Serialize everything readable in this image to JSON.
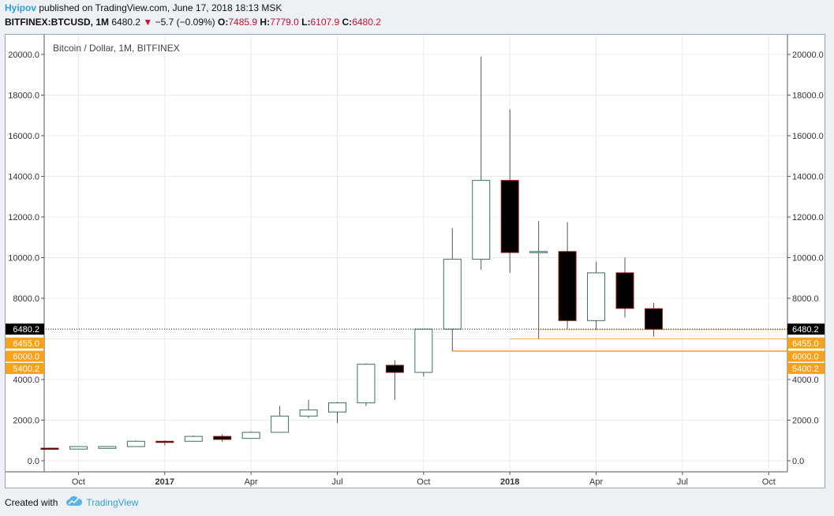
{
  "header": {
    "author": "Hyipov",
    "published_text": " published on TradingView.com, June 17, 2018 18:13 MSK",
    "symbol": "BITFINEX:BTCUSD, 1M",
    "last": "6480.2",
    "down_arrow": "▼",
    "change": "−5.7 (−0.09%)",
    "o_label": "O:",
    "o_value": "7485.9",
    "h_label": "H:",
    "h_value": "7779.0",
    "l_label": "L:",
    "l_value": "6107.9",
    "c_label": "C:",
    "c_value": "6480.2"
  },
  "footer": {
    "created_with": "Created with",
    "brand": "TradingView",
    "logo_icon": "tradingview-cloud-icon"
  },
  "colors": {
    "up_border": "#3d6f5c",
    "down_fill": "#000000",
    "down_border": "#8b1a1a",
    "grid": "#e9ecef",
    "price_line": "#111111",
    "level_line": "#f7a21b",
    "badge_current": "#000000",
    "badge_level": "#f7a21b"
  },
  "chart_data": {
    "type": "candlestick",
    "title": "Bitcoin / Dollar, 1M, BITFINEX",
    "ylim": [
      -500,
      21000
    ],
    "y_ticks": [
      0,
      2000,
      4000,
      8000,
      10000,
      12000,
      14000,
      16000,
      18000,
      20000
    ],
    "y_tick_labels": [
      "0.0",
      "2000.0",
      "4000.0",
      "8000.0",
      "10000.0",
      "12000.0",
      "14000.0",
      "16000.0",
      "18000.0",
      "20000.0"
    ],
    "x_ticks": [
      {
        "label": "Oct",
        "index": 1,
        "bold": false
      },
      {
        "label": "2017",
        "index": 4,
        "bold": true
      },
      {
        "label": "Apr",
        "index": 7,
        "bold": false
      },
      {
        "label": "Jul",
        "index": 10,
        "bold": false
      },
      {
        "label": "Oct",
        "index": 13,
        "bold": false
      },
      {
        "label": "2018",
        "index": 16,
        "bold": true
      },
      {
        "label": "Apr",
        "index": 19,
        "bold": false
      },
      {
        "label": "Jul",
        "index": 22,
        "bold": false
      },
      {
        "label": "Oct",
        "index": 25,
        "bold": false
      }
    ],
    "candles": [
      {
        "date": "2016-08",
        "o": 620,
        "h": 640,
        "l": 560,
        "c": 575
      },
      {
        "date": "2016-09",
        "o": 575,
        "h": 720,
        "l": 560,
        "c": 700
      },
      {
        "date": "2016-10",
        "o": 610,
        "h": 720,
        "l": 600,
        "c": 700
      },
      {
        "date": "2016-11",
        "o": 700,
        "h": 1000,
        "l": 690,
        "c": 960
      },
      {
        "date": "2016-12",
        "o": 960,
        "h": 1000,
        "l": 760,
        "c": 950
      },
      {
        "date": "2017-01",
        "o": 960,
        "h": 1250,
        "l": 940,
        "c": 1200
      },
      {
        "date": "2017-02",
        "o": 1200,
        "h": 1300,
        "l": 930,
        "c": 1050
      },
      {
        "date": "2017-03",
        "o": 1100,
        "h": 1450,
        "l": 1080,
        "c": 1400
      },
      {
        "date": "2017-04",
        "o": 1400,
        "h": 2700,
        "l": 1400,
        "c": 2200
      },
      {
        "date": "2017-05",
        "o": 2200,
        "h": 3000,
        "l": 2100,
        "c": 2500
      },
      {
        "date": "2017-06",
        "o": 2400,
        "h": 2900,
        "l": 1850,
        "c": 2850
      },
      {
        "date": "2017-07",
        "o": 2850,
        "h": 4800,
        "l": 2700,
        "c": 4750
      },
      {
        "date": "2017-08",
        "o": 4700,
        "h": 4950,
        "l": 3000,
        "c": 4350
      },
      {
        "date": "2017-09",
        "o": 4350,
        "h": 6450,
        "l": 4150,
        "c": 6480
      },
      {
        "date": "2017-10",
        "o": 6480,
        "h": 11450,
        "l": 5400,
        "c": 9920
      },
      {
        "date": "2017-11",
        "o": 9920,
        "h": 19900,
        "l": 9400,
        "c": 13800
      },
      {
        "date": "2017-12",
        "o": 13800,
        "h": 17300,
        "l": 9250,
        "c": 10250
      },
      {
        "date": "2018-01",
        "o": 10300,
        "h": 11800,
        "l": 6000,
        "c": 10300
      },
      {
        "date": "2018-02",
        "o": 10300,
        "h": 11750,
        "l": 6500,
        "c": 6900
      },
      {
        "date": "2018-03",
        "o": 6900,
        "h": 9800,
        "l": 6450,
        "c": 9250
      },
      {
        "date": "2018-04",
        "o": 9250,
        "h": 10000,
        "l": 7050,
        "c": 7500
      },
      {
        "date": "2018-05",
        "o": 7485.9,
        "h": 7779.0,
        "l": 6107.9,
        "c": 6480.2
      }
    ],
    "price_line": {
      "value": 6480.2,
      "label": "6480.2"
    },
    "levels": [
      {
        "value": 6455.0,
        "label": "6455.0",
        "from_index": 17
      },
      {
        "value": 6000.0,
        "label": "6000.0",
        "from_index": 16
      },
      {
        "value": 5400.2,
        "label": "5400.2",
        "from_index": 14
      }
    ]
  }
}
